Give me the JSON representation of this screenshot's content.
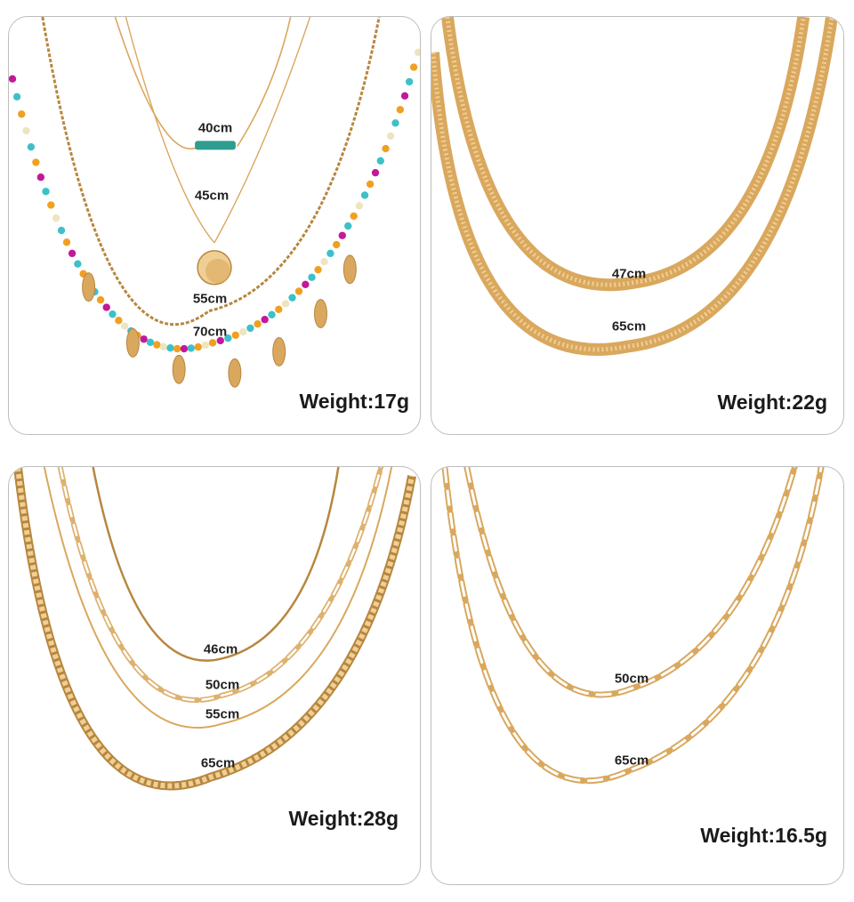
{
  "colors": {
    "gold": "#d9a85e",
    "gold_light": "#f0cf95",
    "gold_dark": "#b7873f",
    "bead_magenta": "#c3189a",
    "bead_turquoise": "#3ec0c8",
    "bead_orange": "#f0a020",
    "bead_cream": "#efe4c0",
    "pendant_turquoise": "#2e9c8f",
    "border": "#bdbdbd"
  },
  "panels": [
    {
      "id": "layered-beaded-set",
      "weight": "Weight:17g",
      "lengths": [
        "40cm",
        "45cm",
        "55cm",
        "70cm"
      ]
    },
    {
      "id": "herringbone-set",
      "weight": "Weight:22g",
      "lengths": [
        "47cm",
        "65cm"
      ]
    },
    {
      "id": "mixed-chain-set",
      "weight": "Weight:28g",
      "lengths": [
        "46cm",
        "50cm",
        "55cm",
        "65cm"
      ]
    },
    {
      "id": "paperclip-set",
      "weight": "Weight:16.5g",
      "lengths": [
        "50cm",
        "65cm"
      ]
    }
  ]
}
